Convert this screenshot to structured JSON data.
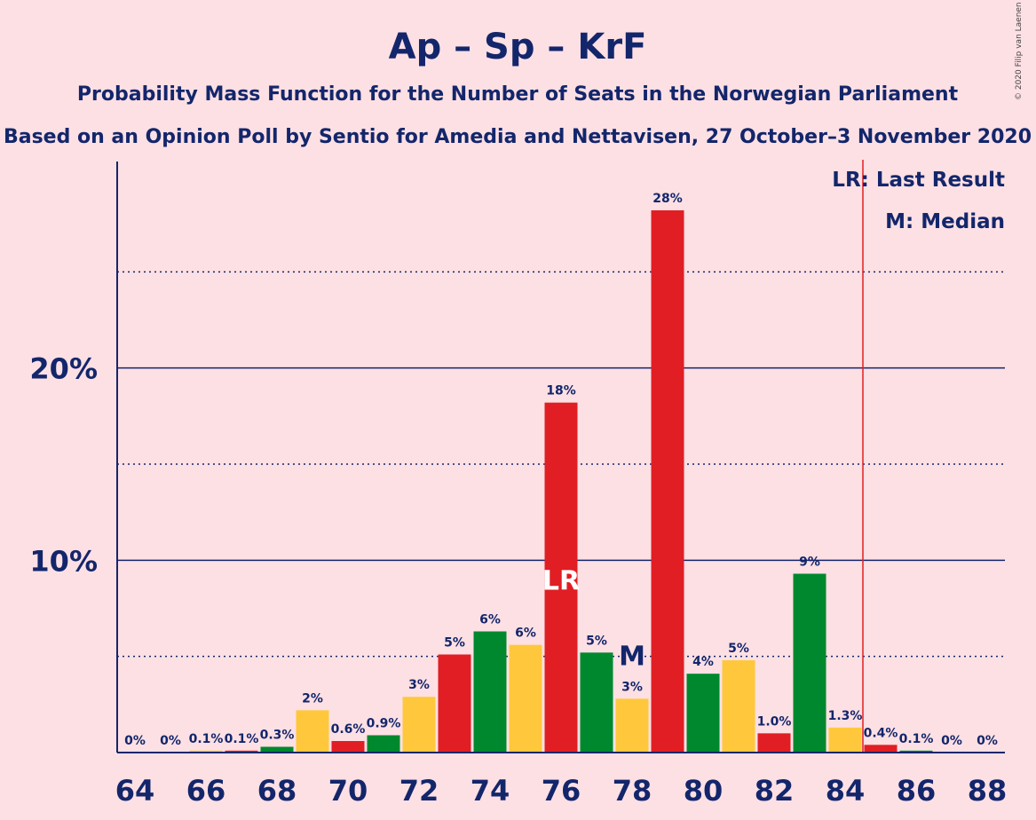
{
  "chart_data": {
    "type": "bar",
    "title": "Ap – Sp – KrF",
    "subtitle": "Probability Mass Function for the Number of Seats in the Norwegian Parliament",
    "subtitle2": "Based on an Opinion Poll by Sentio for Amedia and Nettavisen, 27 October–3 November 2020",
    "copyright": "© 2020 Filip van Laenen",
    "legend": {
      "lr": "LR: Last Result",
      "m": "M: Median",
      "placement": "top-right"
    },
    "x": [
      64,
      65,
      66,
      67,
      68,
      69,
      70,
      71,
      72,
      73,
      74,
      75,
      76,
      77,
      78,
      79,
      80,
      81,
      82,
      83,
      84,
      85,
      86,
      87,
      88
    ],
    "values": [
      0,
      0,
      0.1,
      0.1,
      0.3,
      2.2,
      0.6,
      0.9,
      2.9,
      5.1,
      6.3,
      5.6,
      18.2,
      5.2,
      2.8,
      28.2,
      4.1,
      4.8,
      1.0,
      9.3,
      1.3,
      0.4,
      0.1,
      0,
      0
    ],
    "data_labels": [
      "0%",
      "0%",
      "0.1%",
      "0.1%",
      "0.3%",
      "2%",
      "0.6%",
      "0.9%",
      "3%",
      "5%",
      "6%",
      "6%",
      "18%",
      "5%",
      "3%",
      "28%",
      "4%",
      "5%",
      "1.0%",
      "9%",
      "1.3%",
      "0.4%",
      "0.1%",
      "0%",
      "0%"
    ],
    "x_tick_labels": [
      "64",
      "66",
      "68",
      "70",
      "72",
      "74",
      "76",
      "78",
      "80",
      "82",
      "84",
      "86",
      "88"
    ],
    "y_ticks_major": [
      10,
      20
    ],
    "y_ticks_minor": [
      5,
      15,
      25
    ],
    "y_tick_labels": [
      "10%",
      "20%"
    ],
    "ylim": [
      0,
      30
    ],
    "last_result": {
      "seats": 76,
      "label": "LR"
    },
    "median": {
      "seats": 78,
      "label": "M"
    },
    "majority_line": 84.5,
    "colors": {
      "red": "#e01e24",
      "green": "#00882e",
      "yellow": "#ffc83c",
      "navy": "#13266b",
      "majority": "#e02020",
      "label": "#ffffff"
    },
    "color_cycle": [
      "red",
      "green",
      "yellow"
    ]
  }
}
